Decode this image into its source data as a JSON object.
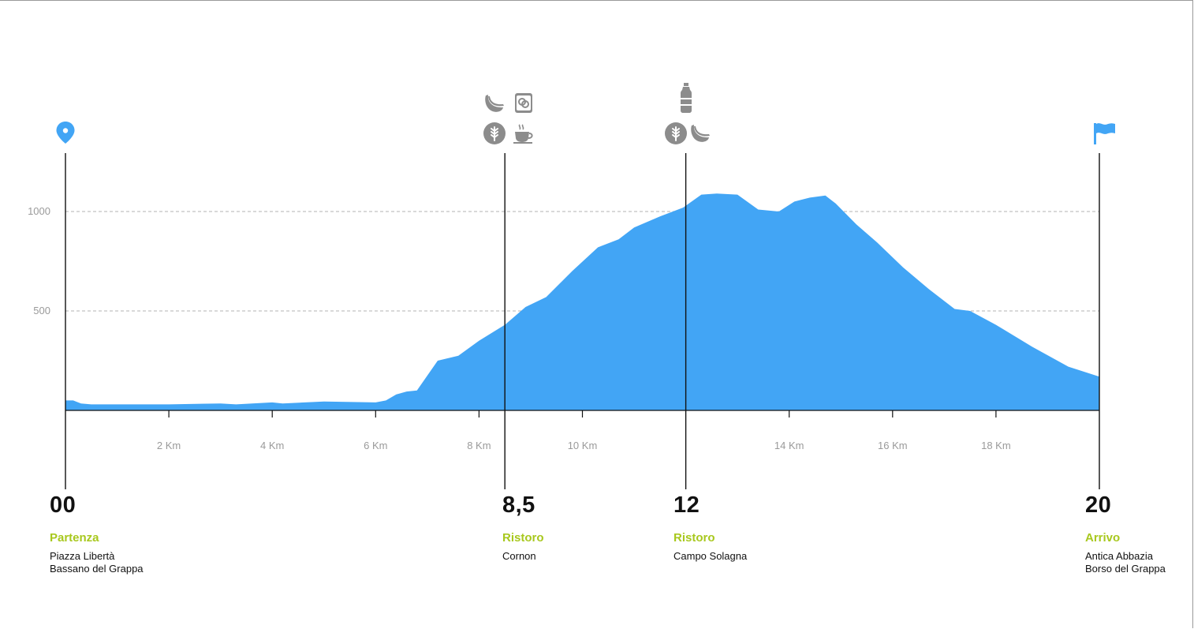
{
  "chart_data": {
    "type": "area",
    "xlabel": "",
    "ylabel": "",
    "xlim": [
      0,
      20
    ],
    "ylim": [
      0,
      1200
    ],
    "x_ticks": [
      {
        "km": 2,
        "label": "2 Km"
      },
      {
        "km": 4,
        "label": "4 Km"
      },
      {
        "km": 6,
        "label": "6 Km"
      },
      {
        "km": 8,
        "label": "8 Km"
      },
      {
        "km": 10,
        "label": "10 Km"
      },
      {
        "km": 14,
        "label": "14 Km"
      },
      {
        "km": 16,
        "label": "16 Km"
      },
      {
        "km": 18,
        "label": "18 Km"
      }
    ],
    "y_gridlines": [
      {
        "value": 500,
        "label": "500"
      },
      {
        "value": 1000,
        "label": "1000"
      }
    ],
    "grid": "dashed horizontal",
    "fill_color": "#42a5f5",
    "series": [
      {
        "x": [
          0,
          0.15,
          0.3,
          0.5,
          1,
          2,
          3,
          3.3,
          4,
          4.2,
          5,
          6,
          6.2,
          6.4,
          6.6,
          6.8,
          7.2,
          7.6,
          8,
          8.5,
          8.9,
          9.3,
          9.8,
          10.3,
          10.7,
          11,
          11.5,
          11.95,
          12.3,
          12.6,
          13,
          13.4,
          13.8,
          14.1,
          14.4,
          14.7,
          14.9,
          15.3,
          15.7,
          16.2,
          16.7,
          17.2,
          17.5,
          18,
          18.7,
          19.4,
          20
        ],
        "y": [
          50,
          50,
          35,
          30,
          30,
          30,
          35,
          30,
          40,
          35,
          45,
          40,
          50,
          80,
          95,
          100,
          250,
          275,
          350,
          430,
          520,
          570,
          700,
          820,
          860,
          920,
          975,
          1020,
          1085,
          1090,
          1085,
          1010,
          1000,
          1050,
          1070,
          1080,
          1040,
          935,
          845,
          720,
          610,
          510,
          500,
          430,
          320,
          220,
          170
        ]
      }
    ]
  },
  "km_markers": [
    0,
    8.5,
    12,
    20
  ],
  "stops": [
    {
      "km_label": "00",
      "type": "Partenza",
      "place1": "Piazza Libertà",
      "place2": "Bassano del Grappa"
    },
    {
      "km_label": "8,5",
      "type": "Ristoro",
      "place1": "Cornon",
      "place2": ""
    },
    {
      "km_label": "12",
      "type": "Ristoro",
      "place1": "Campo Solagna",
      "place2": ""
    },
    {
      "km_label": "20",
      "type": "Arrivo",
      "place1": "Antica Abbazia",
      "place2": "Borso del Grappa"
    }
  ],
  "icons": {
    "start": "location-pin-icon",
    "ristoro_1": [
      "banana-icon",
      "biscuit-icon",
      "wheat-icon",
      "coffee-cup-icon"
    ],
    "ristoro_2": [
      "water-bottle-icon",
      "wheat-icon",
      "banana-icon"
    ],
    "finish": "finish-flag-icon"
  },
  "colors": {
    "accent_blue": "#42a5f5",
    "label_green": "#a8c81e",
    "icon_gray": "#8c8c8c"
  }
}
